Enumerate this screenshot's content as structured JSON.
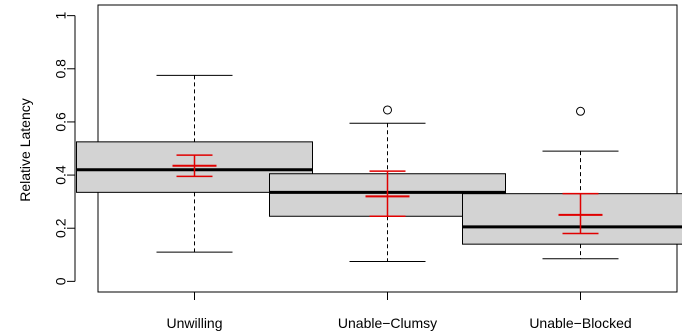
{
  "chart_data": {
    "type": "boxplot",
    "title": "",
    "xlabel": "",
    "ylabel": "Relative Latency",
    "ylim": [
      -0.04,
      1.04
    ],
    "yticks": [
      0,
      0.2,
      0.4,
      0.6,
      0.8,
      1
    ],
    "ytick_labels": [
      "0",
      "0.2",
      "0.4",
      "0.6",
      "0.8",
      "1"
    ],
    "grid": false,
    "legend": "none",
    "colors": {
      "box_fill": "#d3d3d3",
      "median": "#000000",
      "mean_ci": "#e00000"
    },
    "categories": [
      "Unwilling",
      "Unable−Clumsy",
      "Unable−Blocked"
    ],
    "boxes": [
      {
        "category": "Unwilling",
        "whisker_low": 0.11,
        "q1": 0.335,
        "median": 0.42,
        "q3": 0.525,
        "whisker_high": 0.775,
        "outliers": [],
        "mean": 0.435,
        "ci_low": 0.395,
        "ci_high": 0.475
      },
      {
        "category": "Unable−Clumsy",
        "whisker_low": 0.075,
        "q1": 0.245,
        "median": 0.335,
        "q3": 0.405,
        "whisker_high": 0.595,
        "outliers": [
          0.645
        ],
        "mean": 0.32,
        "ci_low": 0.245,
        "ci_high": 0.415
      },
      {
        "category": "Unable−Blocked",
        "whisker_low": 0.085,
        "q1": 0.14,
        "median": 0.205,
        "q3": 0.33,
        "whisker_high": 0.49,
        "outliers": [
          0.64
        ],
        "mean": 0.25,
        "ci_low": 0.18,
        "ci_high": 0.33
      }
    ]
  }
}
